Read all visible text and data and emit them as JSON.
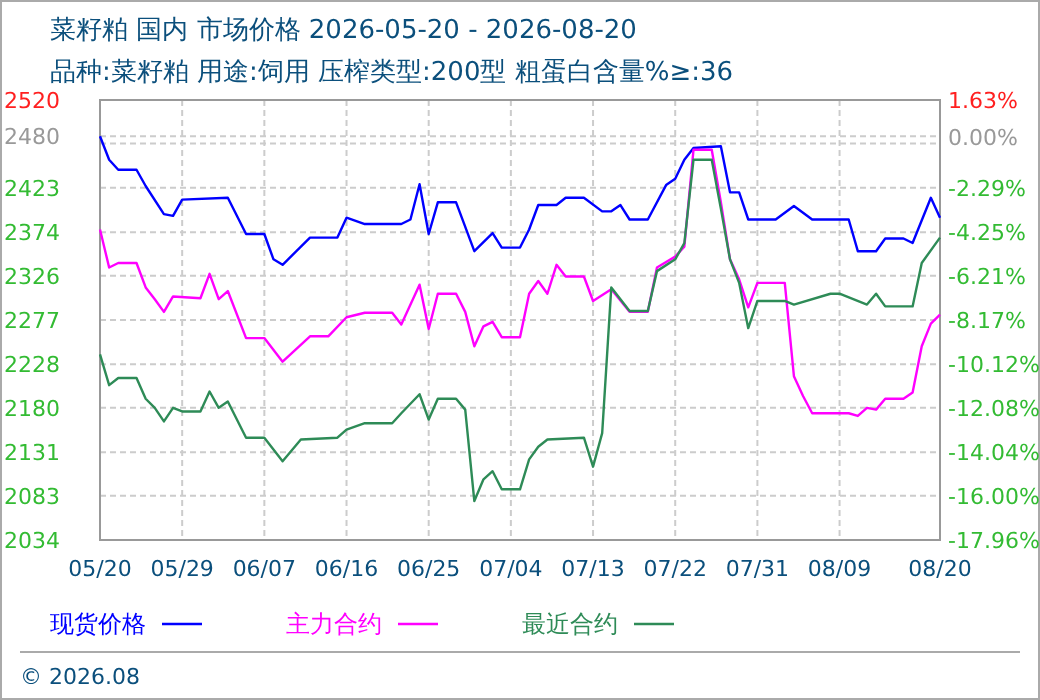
{
  "chart_data": {
    "type": "line",
    "title": "菜籽粕 国内 市场价格 2026-05-20 - 2026-08-20",
    "subtitle": "品种:菜籽粕 用途:饲用 压榨类型:200型 粗蛋白含量%≥:36",
    "annotations": [
      "© 2026.08"
    ],
    "xlim": [
      "2026-05-20",
      "2026-08-20"
    ],
    "xticks": [
      {
        "value": "2026-05-20",
        "label": "05/20"
      },
      {
        "value": "2026-05-29",
        "label": "05/29"
      },
      {
        "value": "2026-06-07",
        "label": "06/07"
      },
      {
        "value": "2026-06-16",
        "label": "06/16"
      },
      {
        "value": "2026-06-25",
        "label": "06/25"
      },
      {
        "value": "2026-07-04",
        "label": "07/04"
      },
      {
        "value": "2026-07-13",
        "label": "07/13"
      },
      {
        "value": "2026-07-22",
        "label": "07/22"
      },
      {
        "value": "2026-07-31",
        "label": "07/31"
      },
      {
        "value": "2026-08-09",
        "label": "08/09"
      },
      {
        "value": "2026-08-20",
        "label": "08/20"
      }
    ],
    "ylim": [
      2034,
      2520
    ],
    "yticks": [
      2034,
      2083,
      2131,
      2180,
      2228,
      2277,
      2326,
      2374,
      2423,
      {
        "value": 2472,
        "label": null
      },
      2480,
      2520
    ],
    "y2lim": [
      -17.96,
      1.63
    ],
    "y2ticks": [
      {
        "value": -17.96,
        "label": "-17.96%"
      },
      {
        "value": -16.0,
        "label": "-16.00%"
      },
      {
        "value": -14.04,
        "label": "-14.04%"
      },
      {
        "value": -12.08,
        "label": "-12.08%"
      },
      {
        "value": -10.12,
        "label": "-10.12%"
      },
      {
        "value": -8.17,
        "label": "-8.17%"
      },
      {
        "value": -6.21,
        "label": "-6.21%"
      },
      {
        "value": -4.25,
        "label": "-4.25%"
      },
      {
        "value": -2.29,
        "label": "-2.29%"
      },
      {
        "value": 0.0,
        "label": "0.00%"
      },
      {
        "value": 1.63,
        "label": "1.63%"
      }
    ],
    "grid": true,
    "legend": "bottom",
    "line_style": "solid",
    "series": [
      {
        "name": "现货价格",
        "color": "#0000ff",
        "x": [
          "2026-05-20",
          "2026-05-21",
          "2026-05-22",
          "2026-05-24",
          "2026-05-25",
          "2026-05-27",
          "2026-05-28",
          "2026-05-29",
          "2026-06-03",
          "2026-06-05",
          "2026-06-07",
          "2026-06-08",
          "2026-06-09",
          "2026-06-12",
          "2026-06-15",
          "2026-06-16",
          "2026-06-18",
          "2026-06-22",
          "2026-06-23",
          "2026-06-24",
          "2026-06-25",
          "2026-06-26",
          "2026-06-28",
          "2026-06-30",
          "2026-07-02",
          "2026-07-03",
          "2026-07-05",
          "2026-07-06",
          "2026-07-07",
          "2026-07-09",
          "2026-07-10",
          "2026-07-12",
          "2026-07-14",
          "2026-07-15",
          "2026-07-16",
          "2026-07-17",
          "2026-07-19",
          "2026-07-21",
          "2026-07-22",
          "2026-07-23",
          "2026-07-24",
          "2026-07-27",
          "2026-07-28",
          "2026-07-29",
          "2026-07-30",
          "2026-08-02",
          "2026-08-04",
          "2026-08-06",
          "2026-08-10",
          "2026-08-11",
          "2026-08-13",
          "2026-08-14",
          "2026-08-16",
          "2026-08-17",
          "2026-08-19",
          "2026-08-20"
        ],
        "values": [
          2480,
          2454,
          2443,
          2443,
          2425,
          2394,
          2392,
          2410,
          2412,
          2372,
          2372,
          2344,
          2338,
          2368,
          2368,
          2390,
          2383,
          2383,
          2388,
          2427,
          2372,
          2407,
          2407,
          2353,
          2373,
          2357,
          2357,
          2377,
          2404,
          2404,
          2412,
          2412,
          2397,
          2397,
          2404,
          2388,
          2388,
          2426,
          2433,
          2454,
          2467,
          2469,
          2418,
          2418,
          2388,
          2388,
          2403,
          2388,
          2388,
          2353,
          2353,
          2367,
          2367,
          2362,
          2412,
          2390
        ]
      },
      {
        "name": "主力合约",
        "color": "#ff00ff",
        "x": [
          "2026-05-20",
          "2026-05-21",
          "2026-05-22",
          "2026-05-24",
          "2026-05-25",
          "2026-05-26",
          "2026-05-27",
          "2026-05-28",
          "2026-05-31",
          "2026-06-01",
          "2026-06-02",
          "2026-06-03",
          "2026-06-05",
          "2026-06-07",
          "2026-06-09",
          "2026-06-12",
          "2026-06-14",
          "2026-06-16",
          "2026-06-18",
          "2026-06-21",
          "2026-06-22",
          "2026-06-24",
          "2026-06-25",
          "2026-06-26",
          "2026-06-28",
          "2026-06-29",
          "2026-06-30",
          "2026-07-01",
          "2026-07-02",
          "2026-07-03",
          "2026-07-05",
          "2026-07-06",
          "2026-07-07",
          "2026-07-08",
          "2026-07-09",
          "2026-07-10",
          "2026-07-12",
          "2026-07-13",
          "2026-07-15",
          "2026-07-17",
          "2026-07-19",
          "2026-07-20",
          "2026-07-22",
          "2026-07-23",
          "2026-07-24",
          "2026-07-26",
          "2026-07-27",
          "2026-07-28",
          "2026-07-29",
          "2026-07-30",
          "2026-07-31",
          "2026-08-03",
          "2026-08-04",
          "2026-08-05",
          "2026-08-06",
          "2026-08-10",
          "2026-08-11",
          "2026-08-12",
          "2026-08-13",
          "2026-08-14",
          "2026-08-16",
          "2026-08-17",
          "2026-08-18",
          "2026-08-19",
          "2026-08-20"
        ],
        "values": [
          2377,
          2335,
          2340,
          2340,
          2313,
          2300,
          2286,
          2303,
          2301,
          2328,
          2300,
          2309,
          2257,
          2257,
          2231,
          2259,
          2259,
          2280,
          2285,
          2285,
          2272,
          2316,
          2267,
          2306,
          2306,
          2286,
          2248,
          2270,
          2275,
          2258,
          2258,
          2306,
          2320,
          2306,
          2338,
          2325,
          2325,
          2298,
          2311,
          2286,
          2286,
          2335,
          2347,
          2358,
          2465,
          2465,
          2407,
          2344,
          2322,
          2291,
          2318,
          2318,
          2215,
          2193,
          2174,
          2174,
          2171,
          2180,
          2178,
          2190,
          2190,
          2197,
          2248,
          2273,
          2283
        ]
      },
      {
        "name": "最近合约",
        "color": "#2e8b57",
        "x": [
          "2026-05-20",
          "2026-05-21",
          "2026-05-22",
          "2026-05-24",
          "2026-05-25",
          "2026-05-26",
          "2026-05-27",
          "2026-05-28",
          "2026-05-29",
          "2026-05-31",
          "2026-06-01",
          "2026-06-02",
          "2026-06-03",
          "2026-06-05",
          "2026-06-07",
          "2026-06-09",
          "2026-06-11",
          "2026-06-15",
          "2026-06-16",
          "2026-06-18",
          "2026-06-21",
          "2026-06-22",
          "2026-06-24",
          "2026-06-25",
          "2026-06-26",
          "2026-06-28",
          "2026-06-29",
          "2026-06-30",
          "2026-07-01",
          "2026-07-02",
          "2026-07-03",
          "2026-07-05",
          "2026-07-06",
          "2026-07-07",
          "2026-07-08",
          "2026-07-12",
          "2026-07-13",
          "2026-07-14",
          "2026-07-15",
          "2026-07-17",
          "2026-07-19",
          "2026-07-20",
          "2026-07-22",
          "2026-07-23",
          "2026-07-24",
          "2026-07-26",
          "2026-07-27",
          "2026-07-28",
          "2026-07-29",
          "2026-07-30",
          "2026-07-31",
          "2026-08-03",
          "2026-08-04",
          "2026-08-08",
          "2026-08-09",
          "2026-08-12",
          "2026-08-13",
          "2026-08-14",
          "2026-08-17",
          "2026-08-18",
          "2026-08-20"
        ],
        "values": [
          2239,
          2205,
          2213,
          2213,
          2190,
          2180,
          2165,
          2180,
          2176,
          2176,
          2198,
          2180,
          2187,
          2147,
          2147,
          2121,
          2145,
          2147,
          2156,
          2163,
          2163,
          2174,
          2195,
          2167,
          2190,
          2190,
          2178,
          2077,
          2101,
          2110,
          2090,
          2090,
          2123,
          2137,
          2145,
          2147,
          2115,
          2152,
          2313,
          2287,
          2287,
          2331,
          2344,
          2362,
          2454,
          2454,
          2400,
          2344,
          2318,
          2268,
          2298,
          2298,
          2294,
          2306,
          2306,
          2294,
          2306,
          2292,
          2292,
          2340,
          2368
        ]
      }
    ]
  }
}
